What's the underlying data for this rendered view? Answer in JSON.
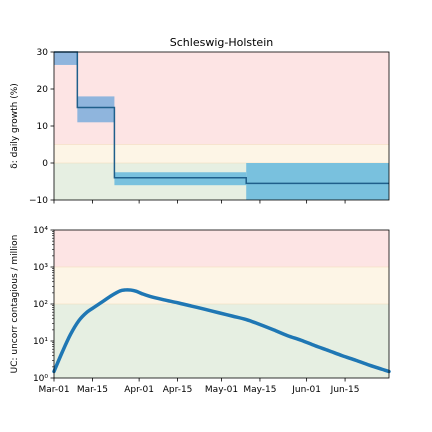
{
  "chart_data": [
    {
      "type": "line",
      "title": "Schleswig-Holstein",
      "ylabel": "δ: daily growth (%)",
      "ylim": [
        -10,
        30
      ],
      "yticks": [
        -10,
        0,
        10,
        20,
        30
      ],
      "ytick_labels": [
        "−10",
        "0",
        "10",
        "20",
        "30"
      ],
      "x_range_days": [
        0,
        122
      ],
      "xticks_days": [
        0,
        14,
        31,
        45,
        61,
        75,
        92,
        106
      ],
      "background_bands": [
        {
          "from": -10,
          "to": 0,
          "color": "#e6efe2"
        },
        {
          "from": 0,
          "to": 5,
          "color": "#fdf5e6"
        },
        {
          "from": 5,
          "to": 30,
          "color": "#fde4e4"
        }
      ],
      "series": [
        {
          "values": [
            {
              "x0": 0,
              "x1": 8.5,
              "y": 30,
              "lo": 26.5,
              "hi": 30,
              "band_color": "#8fb5dd"
            },
            {
              "x0": 8.5,
              "x1": 22,
              "y": 15,
              "lo": 11,
              "hi": 18,
              "band_color": "#8fb5dd"
            },
            {
              "x0": 22,
              "x1": 70,
              "y": -4,
              "lo": -6,
              "hi": -2.5,
              "band_color": "#79c1de"
            },
            {
              "x0": 70,
              "x1": 122,
              "y": -5.5,
              "lo": -10,
              "hi": 0,
              "band_color": "#79c1de"
            }
          ],
          "color": "#1f5f8b"
        }
      ]
    },
    {
      "type": "line",
      "ylabel": "UC: uncorr contagious / million",
      "yscale": "log",
      "ylim": [
        1,
        10000
      ],
      "yticks": [
        1,
        10,
        100,
        1000,
        10000
      ],
      "ytick_labels": [
        "10⁰",
        "10¹",
        "10²",
        "10³",
        "10⁴"
      ],
      "x_range_days": [
        0,
        122
      ],
      "xticks_days": [
        0,
        14,
        31,
        45,
        61,
        75,
        92,
        106
      ],
      "xtick_labels": [
        "Mar-01",
        "Mar-15",
        "Apr-01",
        "Apr-15",
        "May-01",
        "May-15",
        "Jun-01",
        "Jun-15"
      ],
      "background_bands": [
        {
          "from": 1,
          "to": 100,
          "color": "#e6efe2"
        },
        {
          "from": 100,
          "to": 1000,
          "color": "#fdf5e6"
        },
        {
          "from": 1000,
          "to": 10000,
          "color": "#fde4e4"
        }
      ],
      "series": [
        {
          "color": "#1f77b4",
          "x": [
            0,
            3,
            6,
            9,
            12,
            15,
            18,
            21,
            24,
            26,
            28,
            30,
            32,
            35,
            40,
            45,
            50,
            55,
            60,
            65,
            70,
            75,
            80,
            85,
            90,
            95,
            100,
            105,
            110,
            115,
            122
          ],
          "y": [
            1.5,
            5,
            15,
            35,
            60,
            85,
            120,
            170,
            225,
            240,
            238,
            220,
            190,
            160,
            130,
            108,
            88,
            72,
            58,
            47,
            38,
            28,
            20,
            14,
            10.5,
            7.5,
            5.5,
            4,
            3,
            2.2,
            1.5
          ]
        }
      ]
    }
  ]
}
